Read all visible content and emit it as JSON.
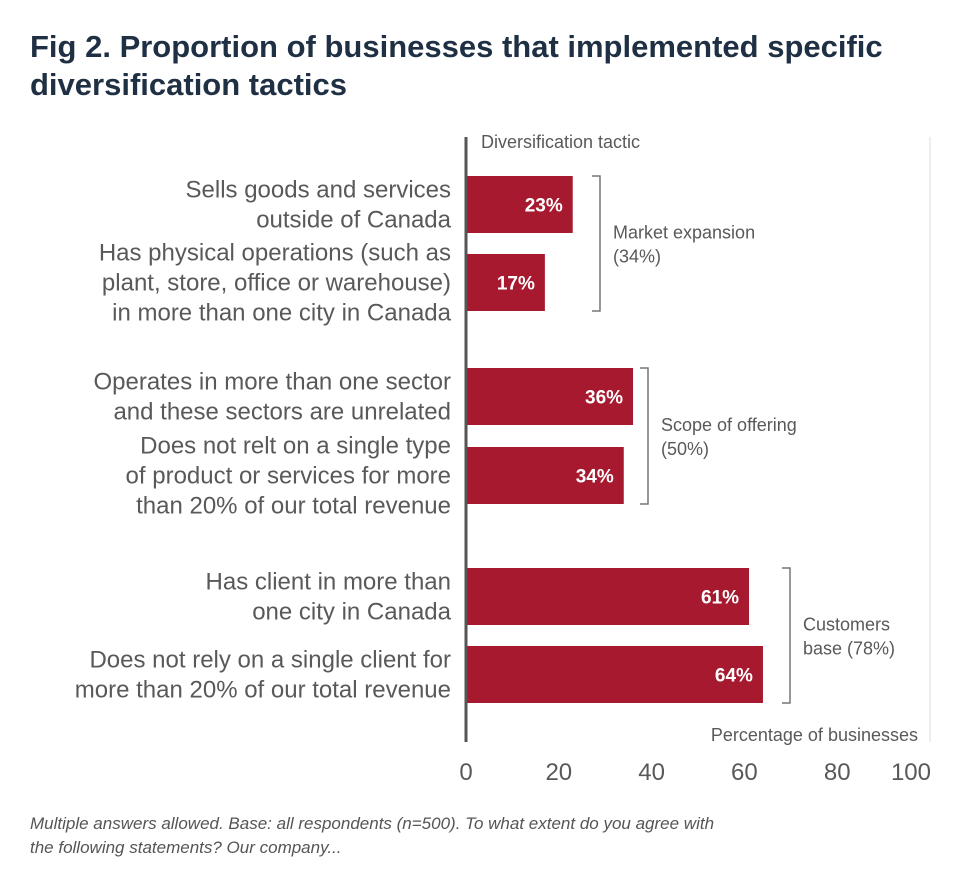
{
  "title": "Fig 2. Proportion of businesses that implemented specific diversification tactics",
  "footnote_line1": "Multiple answers allowed. Base: all respondents (n=500). To what extent do you agree with",
  "footnote_line2": "the following statements? Our company...",
  "colors": {
    "bar": "#a6192e",
    "axis": "#555555",
    "label": "#595959",
    "title": "#1f3044"
  },
  "chart_data": {
    "type": "bar",
    "orientation": "horizontal",
    "category_axis_label": "Diversification tactic",
    "xlabel": "Percentage of businesses",
    "xlim": [
      0,
      100
    ],
    "xticks": [
      0,
      20,
      40,
      60,
      80,
      100
    ],
    "categories": [
      "Sells goods and services outside of Canada",
      "Has physical operations (such as plant, store, office or warehouse) in more than one city in Canada",
      "Operates in more than one sector and these sectors are unrelated",
      "Does not relt on a single type of product or services for more than 20% of our total revenue",
      "Has client in more than one city in Canada",
      "Does not rely on a single client for more than 20% of our total revenue"
    ],
    "category_lines": [
      [
        "Sells goods and services",
        "outside of Canada"
      ],
      [
        "Has physical operations (such as",
        "plant, store, office or warehouse)",
        "in more than one city in Canada"
      ],
      [
        "Operates in more than one sector",
        "and these sectors are unrelated"
      ],
      [
        "Does not relt on a single type",
        "of product or services for more",
        "than 20% of our total revenue"
      ],
      [
        "Has client in more than",
        "one city in Canada"
      ],
      [
        "Does not rely on a single client for",
        "more than 20% of our total revenue"
      ]
    ],
    "values": [
      23,
      17,
      36,
      34,
      61,
      64
    ],
    "value_labels": [
      "23%",
      "17%",
      "36%",
      "34%",
      "61%",
      "64%"
    ],
    "groups": [
      {
        "name_lines": [
          "Market expansion",
          "(34%)"
        ],
        "members": [
          0,
          1
        ]
      },
      {
        "name_lines": [
          "Scope of offering",
          "(50%)"
        ],
        "members": [
          2,
          3
        ]
      },
      {
        "name_lines": [
          "Customers",
          "base (78%)"
        ],
        "members": [
          4,
          5
        ]
      }
    ]
  }
}
